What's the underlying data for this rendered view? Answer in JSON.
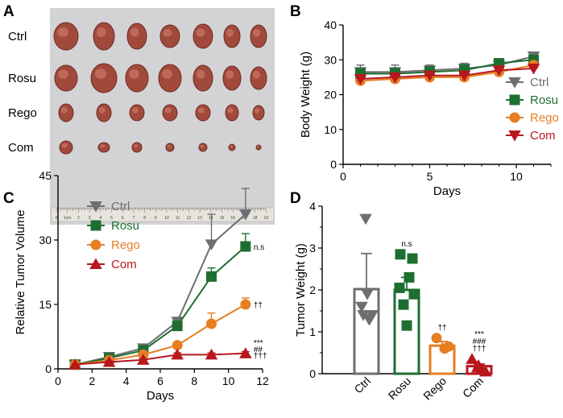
{
  "colors": {
    "Ctrl": "#6d6e71",
    "Rosu": "#1e6e32",
    "Rego": "#e67e22",
    "Com": "#b8171e"
  },
  "panel_a": {
    "letter": "A",
    "row_labels": [
      "Ctrl",
      "Rosu",
      "Rego",
      "Com"
    ],
    "ruler_numbers": [
      "0",
      "1cm",
      "2",
      "3",
      "4",
      "5",
      "6",
      "7",
      "8",
      "9",
      "10",
      "11",
      "12",
      "13",
      "14",
      "15",
      "16",
      "17",
      "18",
      "19"
    ]
  },
  "chart_data": [
    {
      "panel": "B",
      "type": "line",
      "title": "",
      "xlabel": "Days",
      "ylabel": "Body Weight (g)",
      "xlim": [
        0,
        12
      ],
      "ylim": [
        0,
        40
      ],
      "xticks": [
        "0",
        "5",
        "10"
      ],
      "yticks": [
        "0",
        "10",
        "20",
        "30",
        "40"
      ],
      "x": [
        1,
        3,
        5,
        7,
        9,
        11
      ],
      "series": [
        {
          "name": "Ctrl",
          "marker": "triangle-down",
          "values": [
            26.5,
            26.5,
            27,
            27.5,
            28.5,
            31
          ],
          "errors": [
            2,
            2,
            1.5,
            1.5,
            1,
            1
          ]
        },
        {
          "name": "Rosu",
          "marker": "square",
          "values": [
            26,
            26,
            26.5,
            27,
            29,
            30
          ],
          "errors": [
            1.5,
            1.5,
            1.5,
            1.5,
            1,
            1
          ]
        },
        {
          "name": "Rego",
          "marker": "circle",
          "values": [
            24,
            24.5,
            25,
            25,
            26.5,
            28.5
          ],
          "errors": [
            1,
            1,
            1,
            1,
            1,
            1
          ]
        },
        {
          "name": "Com",
          "marker": "triangle-down",
          "values": [
            24.5,
            25,
            25.5,
            25.5,
            27,
            27.5
          ],
          "errors": [
            1,
            1,
            1,
            1,
            1,
            1
          ]
        }
      ],
      "legend": "right"
    },
    {
      "panel": "C",
      "type": "line",
      "title": "",
      "xlabel": "Days",
      "ylabel": "Relative Tumor Volume",
      "xlim": [
        0,
        12
      ],
      "ylim": [
        0,
        45
      ],
      "xticks": [
        "0",
        "2",
        "4",
        "6",
        "8",
        "10",
        "12"
      ],
      "yticks": [
        "0",
        "15",
        "30",
        "45"
      ],
      "x": [
        1,
        3,
        5,
        7,
        9,
        11
      ],
      "series": [
        {
          "name": "Ctrl",
          "marker": "triangle-down",
          "values": [
            1,
            2.8,
            4.8,
            11,
            29,
            36
          ],
          "errors": [
            0,
            0.3,
            0.5,
            1,
            7,
            6
          ]
        },
        {
          "name": "Rosu",
          "marker": "square",
          "values": [
            1,
            2.5,
            4.3,
            10,
            21.5,
            28.5
          ],
          "errors": [
            0,
            0.3,
            0.5,
            1,
            2,
            3
          ]
        },
        {
          "name": "Rego",
          "marker": "circle",
          "values": [
            1,
            2,
            3.3,
            5.5,
            10.5,
            15
          ],
          "errors": [
            0,
            0.3,
            0.5,
            0.5,
            2.5,
            1.5
          ]
        },
        {
          "name": "Com",
          "marker": "triangle-up",
          "values": [
            1,
            1.6,
            2.1,
            3.3,
            3.3,
            3.6
          ],
          "errors": [
            0,
            0.2,
            0.3,
            0.4,
            0.4,
            0.4
          ]
        }
      ],
      "legend": "top-left",
      "annotations": {
        "Rosu": [
          "n.s"
        ],
        "Rego": [
          "††"
        ],
        "Com": [
          "***",
          "##",
          "†††"
        ]
      }
    },
    {
      "panel": "D",
      "type": "bar",
      "title": "",
      "xlabel": "",
      "ylabel": "Tumor Weight (g)",
      "ylim": [
        0,
        4
      ],
      "yticks": [
        "0",
        "1",
        "2",
        "3",
        "4"
      ],
      "categories": [
        "Ctrl",
        "Rosu",
        "Rego",
        "Com"
      ],
      "values": [
        2.02,
        2.0,
        0.67,
        0.18
      ],
      "errors": [
        0.85,
        0.3,
        0.1,
        0.05
      ],
      "points": [
        [
          3.7,
          1.9,
          1.6,
          1.4,
          1.3,
          1.4,
          1.3
        ],
        [
          2.85,
          2.75,
          2.3,
          2.05,
          1.9,
          1.65,
          1.15
        ],
        [
          0.85,
          0.6,
          0.65
        ],
        [
          0.35,
          0.15,
          0.1,
          0.05,
          0.2
        ]
      ],
      "markers": [
        "triangle-down",
        "square",
        "circle",
        "triangle-up"
      ],
      "annotations": [
        [],
        [
          "n.s"
        ],
        [
          "††"
        ],
        [
          "***",
          "###",
          "†††"
        ]
      ]
    }
  ]
}
